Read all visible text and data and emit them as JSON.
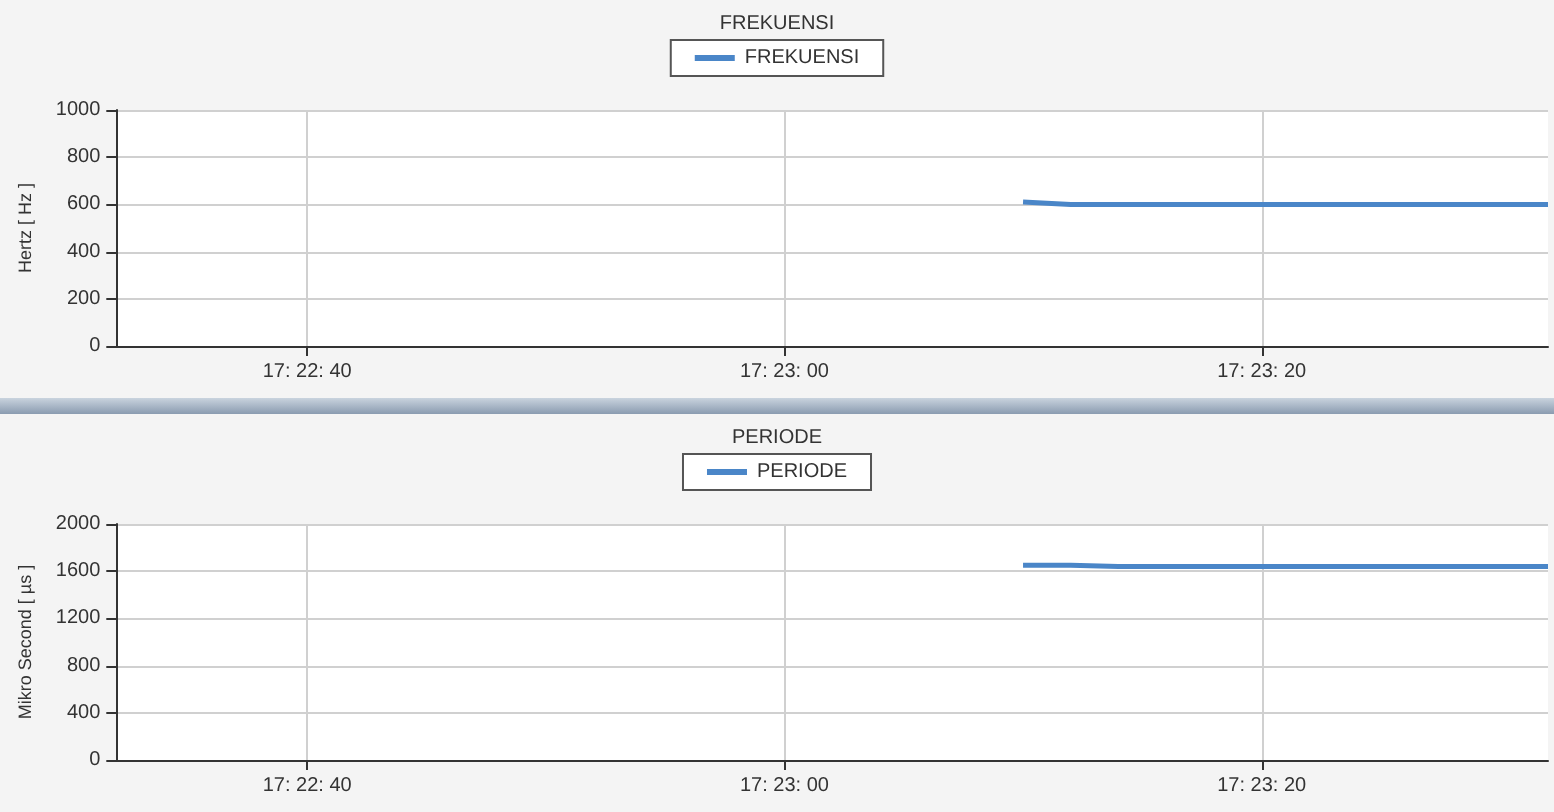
{
  "chart_data": [
    {
      "type": "line",
      "title": "FREKUENSI",
      "ylabel": "Hertz [ Hz ]",
      "legend": "top",
      "grid": true,
      "marker": "none",
      "line_style": "solid",
      "categories": [
        null,
        null,
        null,
        null,
        "17: 22: 40",
        null,
        null,
        null,
        null,
        null,
        null,
        null,
        null,
        null,
        "17: 23: 00",
        null,
        null,
        null,
        null,
        null,
        null,
        null,
        null,
        null,
        "17: 23: 20",
        null,
        null,
        null,
        null,
        null,
        null
      ],
      "ylim": [
        0,
        1000
      ],
      "yticks": [
        0,
        200,
        400,
        600,
        800,
        1000
      ],
      "series": [
        {
          "name": "FREKUENSI",
          "color": "#4a86c8",
          "values": [
            null,
            null,
            null,
            null,
            null,
            null,
            null,
            null,
            null,
            null,
            null,
            null,
            null,
            null,
            null,
            null,
            null,
            null,
            null,
            610,
            600,
            600,
            600,
            600,
            600,
            600,
            600,
            600,
            600,
            600,
            600
          ]
        }
      ]
    },
    {
      "type": "line",
      "title": "PERIODE",
      "ylabel": "Mikro Second [ µs ]",
      "legend": "top",
      "grid": true,
      "marker": "none",
      "line_style": "solid",
      "categories": [
        null,
        null,
        null,
        null,
        "17: 22: 40",
        null,
        null,
        null,
        null,
        null,
        null,
        null,
        null,
        null,
        "17: 23: 00",
        null,
        null,
        null,
        null,
        null,
        null,
        null,
        null,
        null,
        "17: 23: 20",
        null,
        null,
        null,
        null,
        null,
        null
      ],
      "ylim": [
        0,
        2000
      ],
      "yticks": [
        0,
        400,
        800,
        1200,
        1600,
        2000
      ],
      "series": [
        {
          "name": "PERIODE",
          "color": "#4a86c8",
          "values": [
            null,
            null,
            null,
            null,
            null,
            null,
            null,
            null,
            null,
            null,
            null,
            null,
            null,
            null,
            null,
            null,
            null,
            null,
            null,
            1650,
            1650,
            1640,
            1640,
            1640,
            1640,
            1640,
            1640,
            1640,
            1640,
            1640,
            1640
          ]
        }
      ]
    }
  ]
}
